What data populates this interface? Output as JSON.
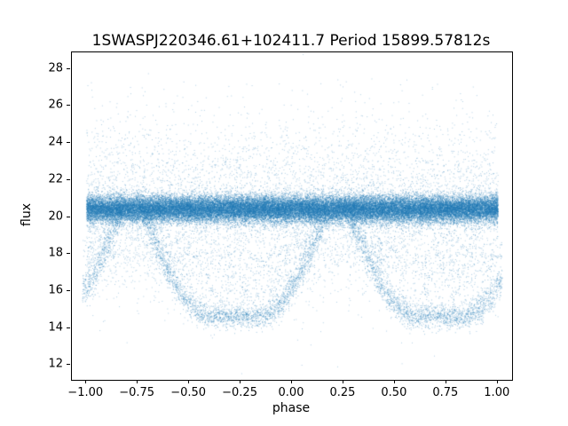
{
  "chart_data": {
    "type": "scatter",
    "title": "1SWASPJ220346.61+102411.7 Period 15899.57812s",
    "xlabel": "phase",
    "ylabel": "flux",
    "xlim": [
      -1.07,
      1.07
    ],
    "ylim": [
      11.2,
      28.9
    ],
    "x_tick_values": [
      -1.0,
      -0.75,
      -0.5,
      -0.25,
      0.0,
      0.25,
      0.5,
      0.75,
      1.0
    ],
    "x_tick_labels": [
      "−1.00",
      "−0.75",
      "−0.50",
      "−0.25",
      "0.00",
      "0.25",
      "0.50",
      "0.75",
      "1.00"
    ],
    "y_tick_values": [
      12,
      14,
      16,
      18,
      20,
      22,
      24,
      26,
      28
    ],
    "y_tick_labels": [
      "12",
      "14",
      "16",
      "18",
      "20",
      "22",
      "24",
      "26",
      "28"
    ],
    "grid": false,
    "legend": "none",
    "marker_color": "#1f77b4",
    "marker_alpha": 0.4,
    "marker_size_px": 1,
    "model": {
      "description": "Phase-folded eclipsing-binary light curve: dense out-of-eclipse band near flux 20.4, broad flat-bottomed eclipses reaching flux ~14.65 centered at phase -0.28 and 0.72 (and wrapped copies at -1.28, 1.72), plus diffuse gaussian noise halo spanning flux ~12 to ~28.",
      "seed": 42,
      "band": {
        "n": 40000,
        "phase_min": -1.0,
        "phase_max": 1.0,
        "flux_mean": 20.45,
        "flux_sigma": 0.36
      },
      "halo": {
        "n": 6500,
        "phase_min": -1.0,
        "phase_max": 1.0,
        "flux_mean": 20.4,
        "flux_sigma": 2.4
      },
      "eclipse": {
        "n": 12000,
        "centers": [
          -1.28,
          -0.28,
          0.72,
          1.72
        ],
        "flat_half_width": 0.12,
        "wing_half_width": 0.45,
        "min_flux": 14.65,
        "top_flux": 20.4,
        "shape_exponent": 1.8,
        "branch_sigma": 0.38,
        "fill_fraction": 0.25
      }
    }
  }
}
